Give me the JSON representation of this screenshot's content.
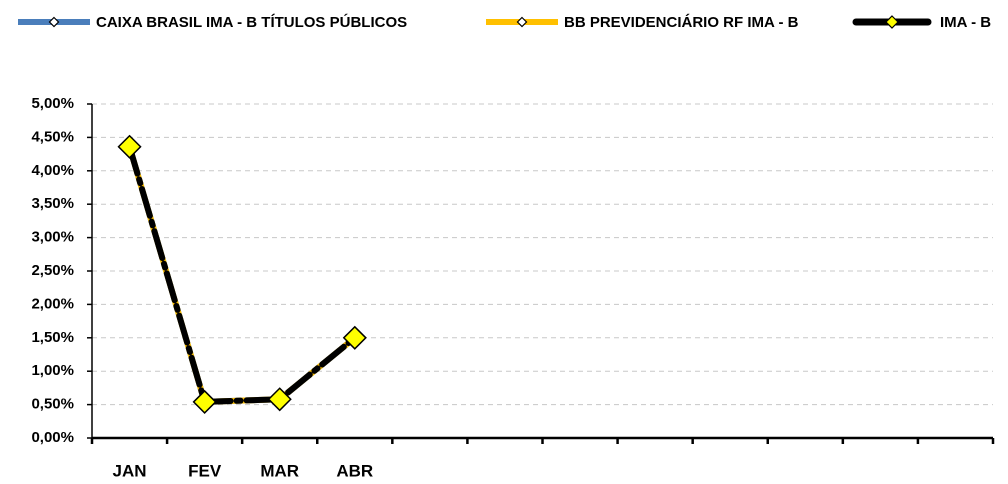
{
  "chart_data": {
    "type": "line",
    "categories": [
      "JAN",
      "FEV",
      "MAR",
      "ABR",
      null,
      null,
      null,
      null,
      null,
      null,
      null,
      null
    ],
    "series": [
      {
        "name": "CAIXA BRASIL IMA - B TÍTULOS PÚBLICOS",
        "color": "#4a7ebb",
        "values": [
          4.36,
          0.54,
          0.58,
          1.5,
          null,
          null,
          null,
          null,
          null,
          null,
          null,
          null
        ]
      },
      {
        "name": "BB PREVIDENCIÁRIO RF IMA - B",
        "color": "#ffc000",
        "values": [
          4.36,
          0.54,
          0.58,
          1.5,
          null,
          null,
          null,
          null,
          null,
          null,
          null,
          null
        ]
      },
      {
        "name": "IMA - B",
        "color": "#000000",
        "values": [
          4.36,
          0.54,
          0.58,
          1.5,
          null,
          null,
          null,
          null,
          null,
          null,
          null,
          null
        ]
      }
    ],
    "ylim": [
      0,
      5
    ],
    "yticks": [
      {
        "value": 0,
        "label": "0,00%"
      },
      {
        "value": 0.5,
        "label": "0,50%"
      },
      {
        "value": 1,
        "label": "1,00%"
      },
      {
        "value": 1.5,
        "label": "1,50%"
      },
      {
        "value": 2,
        "label": "2,00%"
      },
      {
        "value": 2.5,
        "label": "2,50%"
      },
      {
        "value": 3,
        "label": "3,00%"
      },
      {
        "value": 3.5,
        "label": "3,50%"
      },
      {
        "value": 4,
        "label": "4,00%"
      },
      {
        "value": 4.5,
        "label": "4,50%"
      },
      {
        "value": 5,
        "label": "5,00%"
      }
    ],
    "grid": true,
    "legend": "top"
  }
}
